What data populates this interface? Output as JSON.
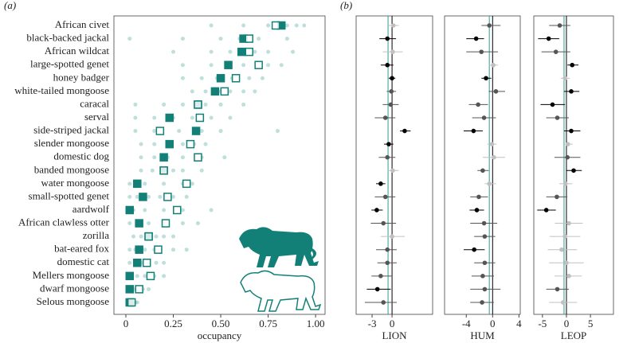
{
  "chart_data": [
    {
      "type": "occupancy",
      "panel_label": "(a)",
      "xlabel": "occupancy",
      "categories": [
        "African civet",
        "black-backed jackal",
        "African wildcat",
        "large-spotted genet",
        "honey badger",
        "white-tailed mongoose",
        "caracal",
        "serval",
        "side-striped jackal",
        "slender mongoose",
        "domestic dog",
        "banded mongoose",
        "water mongoose",
        "small-spotted genet",
        "aardwolf",
        "African clawless otter",
        "zorilla",
        "bat-eared fox",
        "domestic cat",
        "Mellers mongoose",
        "dwarf mongoose",
        "Selous mongoose"
      ],
      "series": [
        {
          "color": "#138078",
          "marker": "filled",
          "values": [
            0.82,
            0.62,
            0.61,
            0.54,
            0.5,
            0.47,
            0.38,
            0.23,
            0.37,
            0.23,
            0.2,
            0.2,
            0.06,
            0.09,
            0.02,
            0.07,
            0.12,
            0.07,
            0.06,
            0.02,
            0.02,
            0.02
          ]
        },
        {
          "color": "#138078",
          "marker": "open",
          "values": [
            0.79,
            0.65,
            0.65,
            0.7,
            0.58,
            0.52,
            0.38,
            0.39,
            0.18,
            0.34,
            0.38,
            0.2,
            0.32,
            0.22,
            0.27,
            0.21,
            0.12,
            0.17,
            0.11,
            0.13,
            0.07,
            0.03
          ]
        }
      ],
      "draws_color": "#6fb8b2",
      "draws": [
        [
          0.45,
          0.62,
          0.75,
          0.85,
          0.9,
          0.94
        ],
        [
          0.02,
          0.3,
          0.5,
          0.6,
          0.7,
          0.85
        ],
        [
          0.25,
          0.45,
          0.55,
          0.68,
          0.75,
          0.88
        ],
        [
          0.3,
          0.45,
          0.55,
          0.62,
          0.75,
          0.82
        ],
        [
          0.3,
          0.4,
          0.48,
          0.56,
          0.65,
          0.72
        ],
        [
          0.35,
          0.42,
          0.5,
          0.55,
          0.62,
          0.68
        ],
        [
          0.05,
          0.2,
          0.3,
          0.42,
          0.5,
          0.62
        ],
        [
          0.05,
          0.15,
          0.25,
          0.35,
          0.45,
          0.55
        ],
        [
          0.05,
          0.15,
          0.28,
          0.4,
          0.5,
          0.8
        ],
        [
          0.08,
          0.15,
          0.22,
          0.3,
          0.36,
          0.42
        ],
        [
          0.08,
          0.15,
          0.22,
          0.3,
          0.4,
          0.52
        ],
        [
          0.08,
          0.14,
          0.2,
          0.25,
          0.3,
          0.4
        ],
        [
          0.02,
          0.05,
          0.1,
          0.2,
          0.3,
          0.35
        ],
        [
          0.02,
          0.06,
          0.12,
          0.18,
          0.25,
          0.32
        ],
        [
          0.01,
          0.04,
          0.1,
          0.2,
          0.3,
          0.45
        ],
        [
          0.02,
          0.06,
          0.12,
          0.2,
          0.3,
          0.38
        ],
        [
          0.04,
          0.08,
          0.12,
          0.16,
          0.2,
          0.25
        ],
        [
          0.02,
          0.05,
          0.1,
          0.15,
          0.25,
          0.32
        ],
        [
          0.02,
          0.05,
          0.08,
          0.12,
          0.16,
          0.2
        ],
        [
          0.01,
          0.03,
          0.06,
          0.1,
          0.15,
          0.2
        ],
        [
          0.01,
          0.02,
          0.04,
          0.06,
          0.09,
          0.12
        ],
        [
          0.01,
          0.02,
          0.03,
          0.04,
          0.05,
          0.06
        ]
      ],
      "xlim": [
        -0.063,
        1.05
      ],
      "xticks": [
        0,
        {
          "value": 0.25,
          "label": "0.25"
        },
        {
          "value": 0.5,
          "label": "0.50"
        },
        0.75,
        {
          "value": 1,
          "label": "1.00"
        }
      ]
    },
    {
      "type": "forest",
      "panel_label": "(b)",
      "xlabel": "LION",
      "xlim": [
        -5.4,
        6.1
      ],
      "xticks": [
        -3,
        0
      ],
      "reference_lines": [
        {
          "value": 0,
          "color": "#000000"
        },
        {
          "value": -0.6,
          "color": "#2a9d95"
        }
      ],
      "values": [
        0.2,
        -0.7,
        0.1,
        -0.7,
        0,
        -0.1,
        -0.2,
        -1.0,
        1.9,
        -0.5,
        -0.7,
        0.1,
        -1.7,
        -1.0,
        -2.3,
        -1.3,
        0,
        -0.7,
        -0.7,
        -1.7,
        -2.2,
        -1.3
      ],
      "lower": [
        -0.5,
        -1.9,
        -1.4,
        -1.7,
        -0.5,
        -0.8,
        -1.4,
        -2.6,
        1.2,
        -1.2,
        -2.0,
        -0.7,
        -2.4,
        -2.6,
        -3.1,
        -3.2,
        -1.7,
        -2.4,
        -2.2,
        -3.1,
        -3.8,
        -4.1
      ],
      "upper": [
        1.0,
        0.6,
        1.6,
        0.2,
        0.5,
        0.6,
        1.0,
        0.5,
        2.8,
        0.2,
        0.5,
        1.0,
        -1.0,
        0.5,
        -1.4,
        0.6,
        1.9,
        0.7,
        0.7,
        0,
        -0.2,
        0.7
      ],
      "colors": [
        "#c0c0c0",
        "#000000",
        "#c0c0c0",
        "#000000",
        "#000000",
        "#555555",
        "#555555",
        "#555555",
        "#000000",
        "#000000",
        "#555555",
        "#c0c0c0",
        "#000000",
        "#555555",
        "#000000",
        "#555555",
        "#c0c0c0",
        "#555555",
        "#555555",
        "#555555",
        "#000000",
        "#555555"
      ]
    },
    {
      "type": "forest",
      "xlabel": "HUM",
      "xlim": [
        -7.3,
        4.2
      ],
      "xticks": [
        -4,
        0,
        4
      ],
      "reference_lines": [
        {
          "value": 0,
          "color": "#000000"
        },
        {
          "value": -0.5,
          "color": "#2a9d95"
        }
      ],
      "values": [
        -0.5,
        -2.5,
        -1.7,
        0.1,
        -1.0,
        0.5,
        -2.2,
        -1.3,
        -2.9,
        -0.1,
        0.2,
        -1.5,
        -0.5,
        -2.1,
        -2.4,
        -1.3,
        -1.2,
        -2.8,
        -1.2,
        -1.5,
        -1.2,
        -1.6
      ],
      "lower": [
        -1.7,
        -4.0,
        -4.0,
        -0.6,
        -1.7,
        -0.6,
        -3.6,
        -3.1,
        -4.4,
        -0.8,
        -1.5,
        -2.3,
        -1.2,
        -3.4,
        -3.5,
        -3.4,
        -2.8,
        -4.4,
        -2.8,
        -3.2,
        -3.4,
        -3.4
      ],
      "upper": [
        1.2,
        -1.3,
        0.8,
        0.8,
        -0.2,
        1.9,
        -0.7,
        0.5,
        -1.5,
        0.6,
        1.9,
        -0.6,
        0.5,
        -0.7,
        -1.3,
        0.7,
        0.4,
        -1.2,
        0.4,
        0.2,
        1.2,
        0.2
      ],
      "colors": [
        "#555555",
        "#000000",
        "#555555",
        "#c0c0c0",
        "#000000",
        "#555555",
        "#555555",
        "#555555",
        "#000000",
        "#c0c0c0",
        "#c0c0c0",
        "#555555",
        "#c0c0c0",
        "#555555",
        "#000000",
        "#555555",
        "#555555",
        "#000000",
        "#555555",
        "#555555",
        "#555555",
        "#555555"
      ]
    },
    {
      "type": "forest",
      "xlabel": "LEOP",
      "xlim": [
        -6.8,
        9.8
      ],
      "xticks": [
        -5,
        0,
        5
      ],
      "reference_lines": [
        {
          "value": 0,
          "color": "#000000"
        },
        {
          "value": -0.5,
          "color": "#2a9d95"
        }
      ],
      "values": [
        -1.4,
        -3.7,
        -2.2,
        1.2,
        -0.3,
        1.0,
        -2.9,
        -1.9,
        1.0,
        0.3,
        0.2,
        1.5,
        -0.2,
        -2.0,
        -4.2,
        0.5,
        -0.3,
        -1.0,
        0,
        0.5,
        -1.9,
        -0.7
      ],
      "lower": [
        -3.6,
        -5.9,
        -5.2,
        0.2,
        -1.2,
        -0.5,
        -5.4,
        -4.2,
        -0.5,
        -0.5,
        -2.5,
        0,
        -1.5,
        -4.2,
        -6.1,
        -2.4,
        -3.5,
        -3.9,
        -3.6,
        -2.5,
        -4.2,
        -3.6
      ],
      "upper": [
        0.8,
        -1.5,
        0.8,
        2.5,
        0.7,
        2.7,
        -0.3,
        0.5,
        2.9,
        1.3,
        2.9,
        3.2,
        1.2,
        0.2,
        -2.2,
        3.4,
        2.9,
        2.2,
        3.6,
        3.2,
        0.5,
        2.2
      ],
      "colors": [
        "#555555",
        "#000000",
        "#555555",
        "#000000",
        "#c0c0c0",
        "#000000",
        "#000000",
        "#555555",
        "#000000",
        "#c0c0c0",
        "#555555",
        "#000000",
        "#c0c0c0",
        "#555555",
        "#000000",
        "#c0c0c0",
        "#c0c0c0",
        "#c0c0c0",
        "#c0c0c0",
        "#c0c0c0",
        "#555555",
        "#c0c0c0"
      ]
    }
  ]
}
